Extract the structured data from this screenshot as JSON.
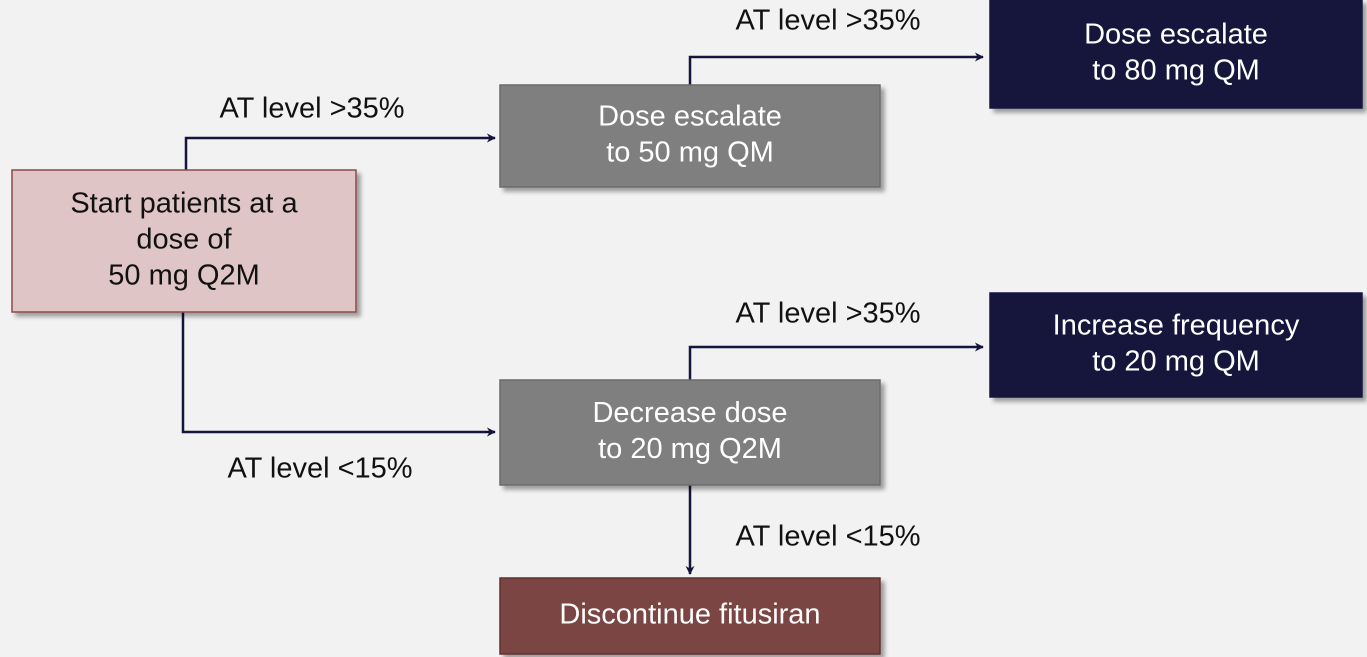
{
  "nodes": [
    {
      "lines": [
        "Start patients at a",
        "dose of",
        "50 mg Q2M"
      ]
    },
    {
      "lines": [
        "Dose escalate",
        "to 50 mg QM"
      ]
    },
    {
      "lines": [
        "Dose escalate",
        "to 80 mg QM"
      ]
    },
    {
      "lines": [
        "Increase frequency",
        "to 20 mg QM"
      ]
    },
    {
      "lines": [
        "Decrease dose",
        "to 20 mg Q2M"
      ]
    },
    {
      "lines": [
        "Discontinue fitusiran"
      ]
    }
  ],
  "edges": [
    {
      "label": "AT level >35%"
    },
    {
      "label": "AT level >35%"
    },
    {
      "label": "AT level <15%"
    },
    {
      "label": "AT level >35%"
    },
    {
      "label": "AT level <15%"
    }
  ]
}
